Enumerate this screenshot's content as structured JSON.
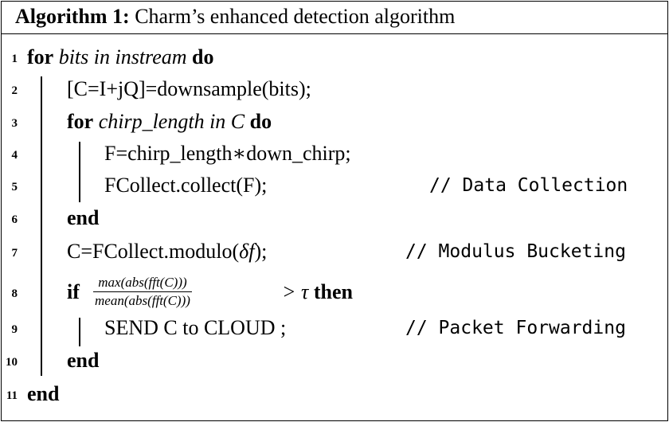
{
  "algorithm": {
    "label": "Algorithm 1:",
    "title": "Charm’s enhanced detection algorithm"
  },
  "lines": [
    {
      "num": "1",
      "kw1": "for",
      "expr": "bits in instream",
      "kw2": "do"
    },
    {
      "num": "2",
      "text": "[C=I+jQ]=downsample(bits);"
    },
    {
      "num": "3",
      "kw1": "for",
      "expr": "chirp_length in C",
      "kw2": "do"
    },
    {
      "num": "4",
      "text": "F=chirp_length∗down_chirp;"
    },
    {
      "num": "5",
      "text": "FCollect.collect(F);",
      "comment": "// Data Collection"
    },
    {
      "num": "6",
      "kw1": "end"
    },
    {
      "num": "7",
      "text_pre": "C=FCollect.modulo(",
      "text_math": "δf",
      "text_post": ");",
      "comment": "// Modulus Bucketing"
    },
    {
      "num": "8",
      "kw1": "if",
      "numerator": "max(abs(fft(C)))",
      "denominator": "mean(abs(fft(C)))",
      "rel": "> τ",
      "kw2": "then"
    },
    {
      "num": "9",
      "text": "SEND C to CLOUD ;",
      "comment": "// Packet Forwarding"
    },
    {
      "num": "10",
      "kw1": "end"
    },
    {
      "num": "11",
      "kw1": "end"
    }
  ]
}
